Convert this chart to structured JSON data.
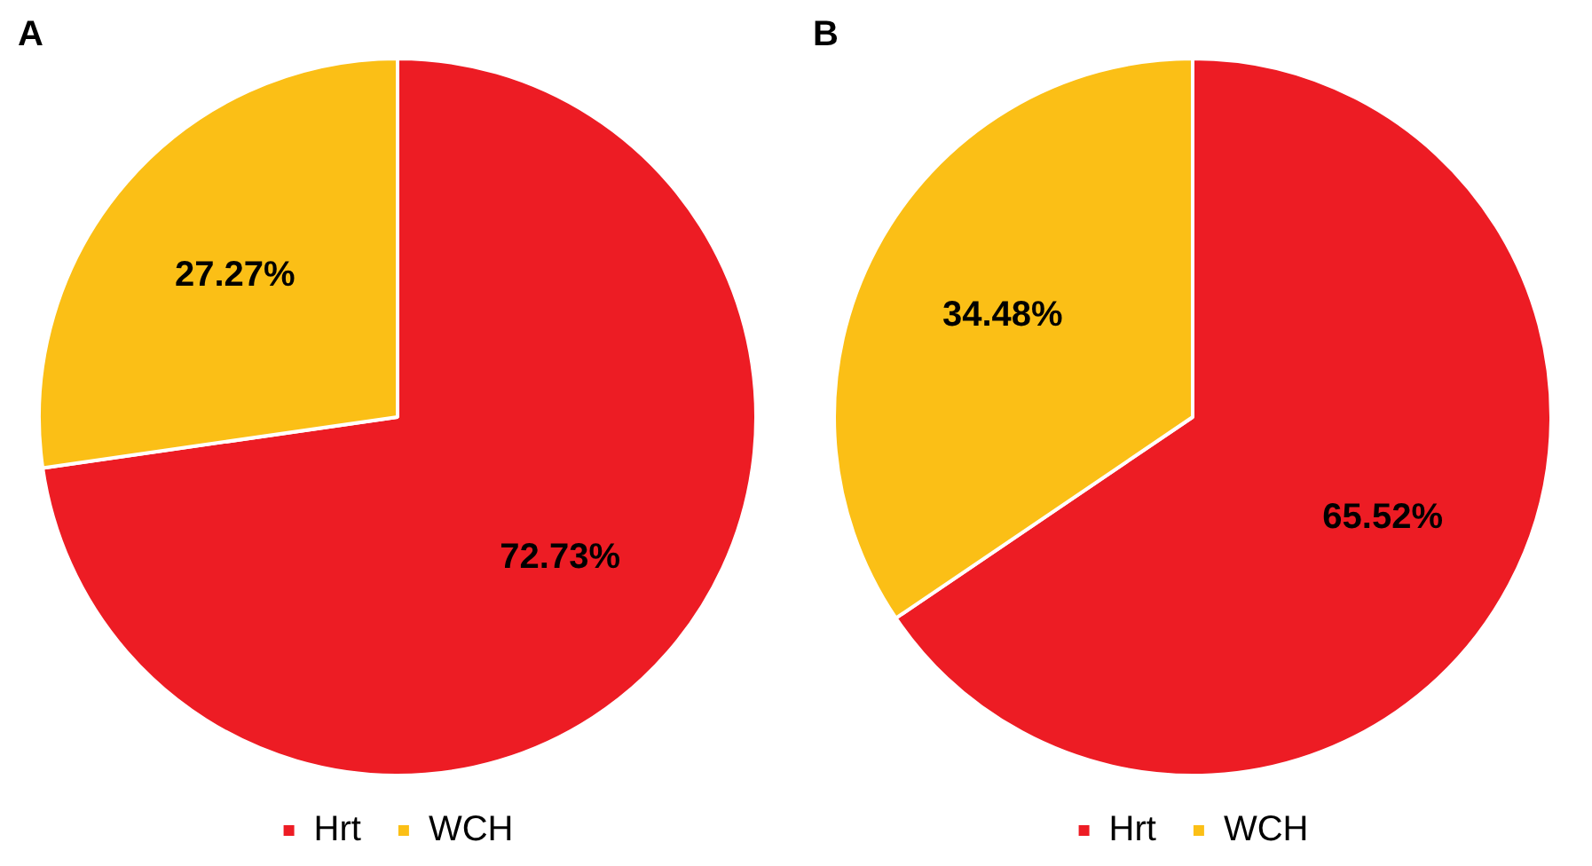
{
  "chart_data": [
    {
      "type": "pie",
      "title": "A",
      "categories": [
        "Hrt",
        "WCH"
      ],
      "values": [
        72.73,
        27.27
      ],
      "colors": [
        "#ed1c24",
        "#fbbf16"
      ],
      "value_labels": [
        "72.73%",
        "27.27%"
      ],
      "legend": "bottom"
    },
    {
      "type": "pie",
      "title": "B",
      "categories": [
        "Hrt",
        "WCH"
      ],
      "values": [
        65.52,
        34.48
      ],
      "colors": [
        "#ed1c24",
        "#fbbf16"
      ],
      "value_labels": [
        "65.52%",
        "34.48%"
      ],
      "legend": "bottom"
    }
  ]
}
